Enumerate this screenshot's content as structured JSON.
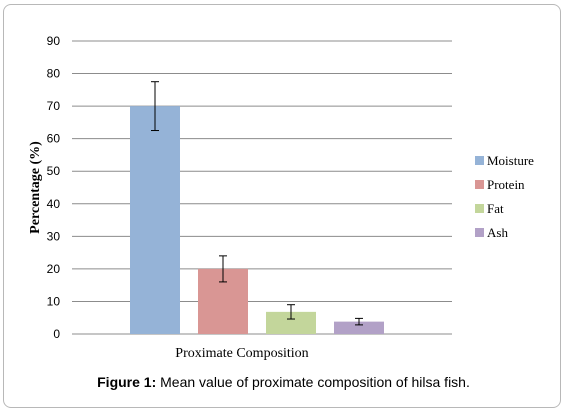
{
  "caption": {
    "label": "Figure 1:",
    "text": " Mean value of proximate composition of hilsa fish."
  },
  "chart_data": {
    "type": "bar",
    "title": "",
    "xlabel": "",
    "ylabel": "Percentage (%)",
    "ylim": [
      0,
      90
    ],
    "yticks": [
      0,
      10,
      20,
      30,
      40,
      50,
      60,
      70,
      80,
      90
    ],
    "grid": true,
    "legend_position": "right",
    "categories": [
      "Proximate Composition"
    ],
    "series": [
      {
        "name": "Moisture",
        "values": [
          70
        ],
        "error": [
          7.5
        ],
        "color": "#95b3d7"
      },
      {
        "name": "Protein",
        "values": [
          20
        ],
        "error": [
          4
        ],
        "color": "#d99694"
      },
      {
        "name": "Fat",
        "values": [
          6.8
        ],
        "error": [
          2.2
        ],
        "color": "#c3d69b"
      },
      {
        "name": "Ash",
        "values": [
          3.8
        ],
        "error": [
          1
        ],
        "color": "#b2a1c7"
      }
    ]
  }
}
